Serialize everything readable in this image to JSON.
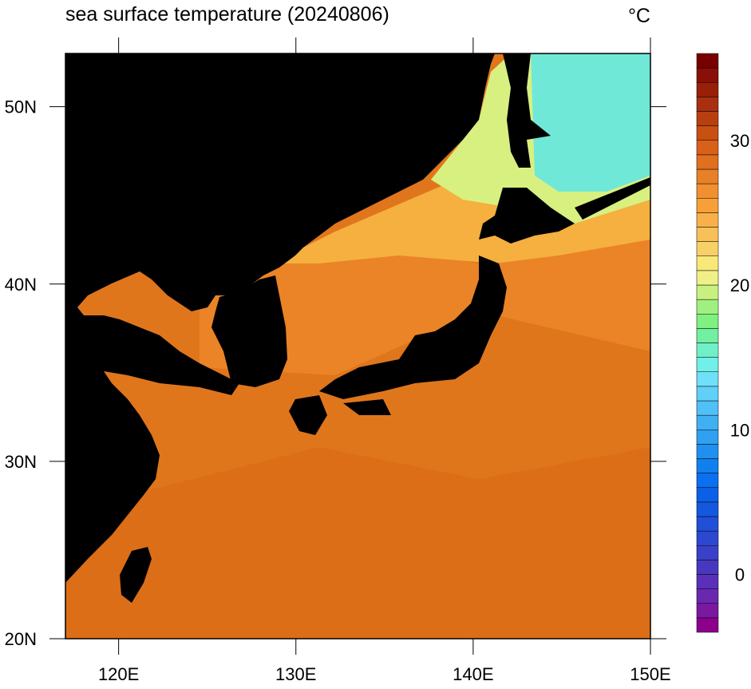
{
  "title": "sea surface temperature (20240806)",
  "unit": "°C",
  "map": {
    "xlim": [
      117,
      150
    ],
    "ylim": [
      20,
      53
    ],
    "xticks": [
      {
        "value": 120,
        "label": "120E"
      },
      {
        "value": 130,
        "label": "130E"
      },
      {
        "value": 140,
        "label": "140E"
      },
      {
        "value": 150,
        "label": "150E"
      }
    ],
    "yticks": [
      {
        "value": 20,
        "label": "20N"
      },
      {
        "value": 30,
        "label": "30N"
      },
      {
        "value": 40,
        "label": "40N"
      },
      {
        "value": 50,
        "label": "50N"
      }
    ]
  },
  "colorbar": {
    "lim": [
      -4,
      36
    ],
    "ticks": [
      0,
      10,
      20,
      30
    ],
    "colors": [
      "#8c008c",
      "#7a18a0",
      "#6a28b0",
      "#5a30b8",
      "#4838c0",
      "#3a40c8",
      "#2c48d0",
      "#2050d8",
      "#1458e0",
      "#0c60e8",
      "#0a70f0",
      "#1080f0",
      "#2090f0",
      "#30a0f0",
      "#40b0f0",
      "#50c0f8",
      "#60d0f8",
      "#70e0f8",
      "#70f0e8",
      "#70f0c8",
      "#70f0a0",
      "#80f080",
      "#a0f080",
      "#c8f080",
      "#f0f088",
      "#f8e878",
      "#f8d068",
      "#f8c058",
      "#f8b048",
      "#f8a038",
      "#f09030",
      "#e88028",
      "#e07020",
      "#d86018",
      "#c85010",
      "#b84010",
      "#a83010",
      "#982008",
      "#881008",
      "#780000"
    ]
  }
}
